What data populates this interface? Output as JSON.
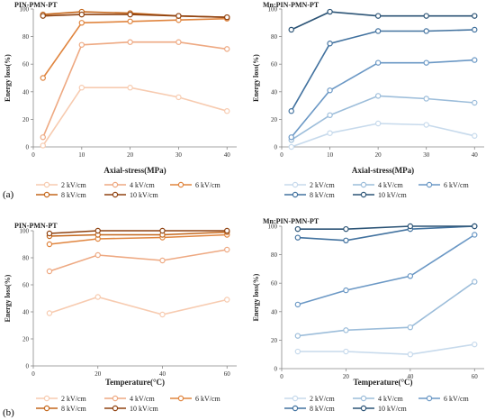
{
  "panel_labels": {
    "a": "(a)",
    "b": "(b)"
  },
  "chart_data": [
    {
      "type": "line",
      "title": "PIN-PMN-PT",
      "xlabel": "Axial-stress(MPa)",
      "ylabel": "Energy loss(%)",
      "x": [
        2,
        10,
        20,
        30,
        40
      ],
      "xlim": [
        0,
        42
      ],
      "xticks": [
        0,
        10,
        20,
        30,
        40
      ],
      "ylim": [
        0,
        100
      ],
      "yticks": [
        0,
        20,
        40,
        60,
        80,
        100
      ],
      "grid": false,
      "legend_position": "bottom",
      "series": [
        {
          "name": "2 kV/cm",
          "values": [
            1,
            43,
            43,
            36,
            26
          ],
          "color": "#f7cbb0"
        },
        {
          "name": "4 kV/cm",
          "values": [
            7,
            74,
            76,
            76,
            71
          ],
          "color": "#eea982"
        },
        {
          "name": "6 kV/cm",
          "values": [
            50,
            90,
            91,
            92,
            93
          ],
          "color": "#e0853f"
        },
        {
          "name": "8 kV/cm",
          "values": [
            96,
            98,
            97,
            95,
            94
          ],
          "color": "#c4671c"
        },
        {
          "name": "10 kV/cm",
          "values": [
            95,
            96,
            96,
            95,
            94
          ],
          "color": "#8f4210"
        }
      ]
    },
    {
      "type": "line",
      "title": "Mn:PIN-PMN-PT",
      "xlabel": "Axial-stress(MPa)",
      "ylabel": "Energy loss(%)",
      "x": [
        2,
        10,
        20,
        30,
        40
      ],
      "xlim": [
        0,
        42
      ],
      "xticks": [
        0,
        10,
        20,
        30,
        40
      ],
      "ylim": [
        0,
        100
      ],
      "yticks": [
        0,
        20,
        40,
        60,
        80,
        100
      ],
      "grid": false,
      "legend_position": "bottom",
      "series": [
        {
          "name": "2 kV/cm",
          "values": [
            0,
            10,
            17,
            16,
            8
          ],
          "color": "#c7daec"
        },
        {
          "name": "4 kV/cm",
          "values": [
            5,
            23,
            37,
            35,
            32
          ],
          "color": "#9cbdda"
        },
        {
          "name": "6 kV/cm",
          "values": [
            7,
            41,
            61,
            61,
            63
          ],
          "color": "#6b98c5"
        },
        {
          "name": "8 kV/cm",
          "values": [
            26,
            75,
            84,
            84,
            85
          ],
          "color": "#42729f"
        },
        {
          "name": "10 kV/cm",
          "values": [
            85,
            98,
            95,
            95,
            95
          ],
          "color": "#2c5476"
        }
      ]
    },
    {
      "type": "line",
      "title": "PIN-PMN-PT",
      "xlabel": "Temperature(°C)",
      "ylabel": "Energy loss(%)",
      "x": [
        5,
        20,
        40,
        60
      ],
      "xlim": [
        0,
        63
      ],
      "xticks": [
        0,
        20,
        40,
        60
      ],
      "ylim": [
        0,
        100
      ],
      "yticks": [
        0,
        20,
        40,
        60,
        80,
        100
      ],
      "grid": false,
      "legend_position": "bottom",
      "series": [
        {
          "name": "2 kV/cm",
          "values": [
            39,
            51,
            38,
            49
          ],
          "color": "#f7cbb0"
        },
        {
          "name": "4 kV/cm",
          "values": [
            70,
            82,
            78,
            86
          ],
          "color": "#eea982"
        },
        {
          "name": "6 kV/cm",
          "values": [
            90,
            94,
            95,
            97
          ],
          "color": "#e0853f"
        },
        {
          "name": "8 kV/cm",
          "values": [
            96,
            97,
            97,
            99
          ],
          "color": "#c4671c"
        },
        {
          "name": "10 kV/cm",
          "values": [
            98,
            100,
            100,
            100
          ],
          "color": "#8f4210"
        }
      ]
    },
    {
      "type": "line",
      "title": "Mn:PIN-PMN-PT",
      "xlabel": "Temperature(°C)",
      "ylabel": "Energy loss(%)",
      "x": [
        5,
        20,
        40,
        60
      ],
      "xlim": [
        0,
        63
      ],
      "xticks": [
        0,
        20,
        40,
        60
      ],
      "ylim": [
        0,
        100
      ],
      "yticks": [
        0,
        20,
        40,
        60,
        80,
        100
      ],
      "grid": false,
      "legend_position": "bottom",
      "series": [
        {
          "name": "2 kV/cm",
          "values": [
            12,
            12,
            10,
            17
          ],
          "color": "#c7daec"
        },
        {
          "name": "4 kV/cm",
          "values": [
            23,
            27,
            29,
            61
          ],
          "color": "#9cbdda"
        },
        {
          "name": "6 kV/cm",
          "values": [
            45,
            55,
            65,
            94
          ],
          "color": "#6b98c5"
        },
        {
          "name": "8 kV/cm",
          "values": [
            92,
            90,
            98,
            100
          ],
          "color": "#42729f"
        },
        {
          "name": "10 kV/cm",
          "values": [
            98,
            98,
            100,
            100
          ],
          "color": "#2c5476"
        }
      ]
    }
  ]
}
